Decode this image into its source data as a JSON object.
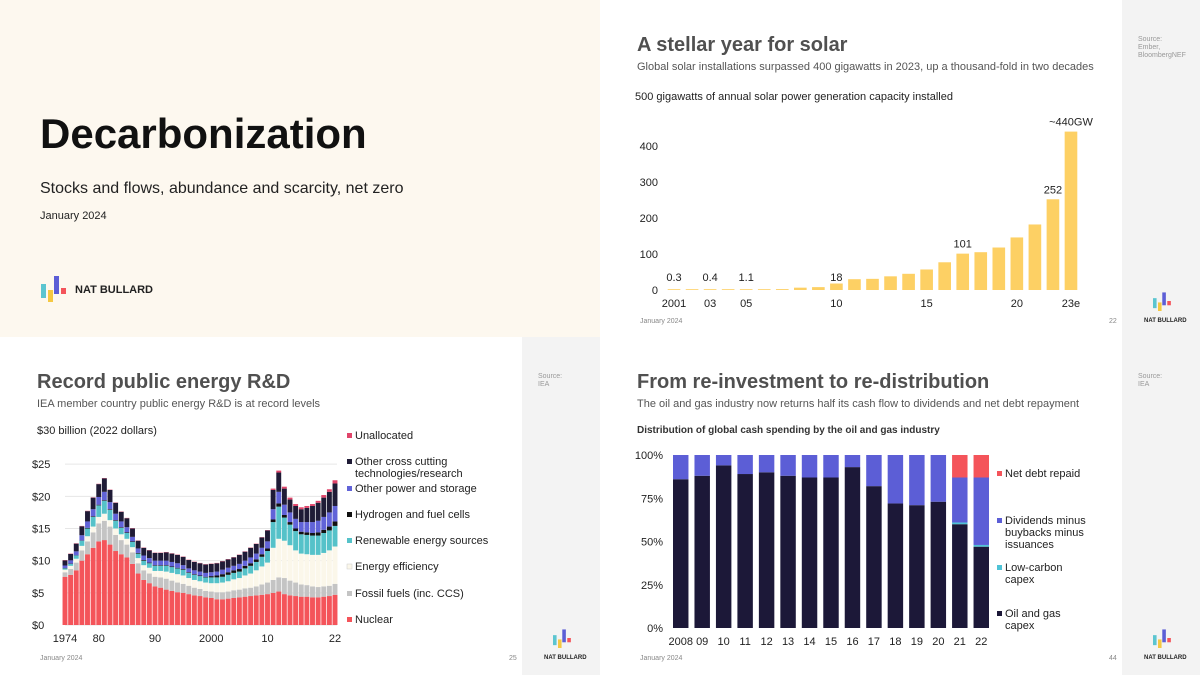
{
  "cover": {
    "title": "Decarbonization",
    "subtitle": "Stocks and flows, abundance and scarcity, net zero",
    "date": "January 2024",
    "brand": "NAT BULLARD"
  },
  "slide_solar": {
    "title": "A stellar year for solar",
    "subtitle": "Global solar installations surpassed 400 gigawatts in 2023, up a thousand-fold in two decades",
    "source": "Source:\nEmber,\nBloombergNEF",
    "date": "January 2024",
    "page": "22",
    "brand": "NAT BULLARD"
  },
  "slide_rd": {
    "title": "Record public energy R&D",
    "subtitle": "IEA member country public energy R&D is at record levels",
    "source": "Source:\nIEA",
    "date": "January 2024",
    "page": "25",
    "brand": "NAT BULLARD"
  },
  "slide_oil": {
    "title": "From re-investment to re-distribution",
    "subtitle": "The oil and gas industry now returns half its cash flow to dividends and net debt repayment",
    "source": "Source:\nIEA",
    "date": "January 2024",
    "page": "44",
    "brand": "NAT BULLARD"
  },
  "colors": {
    "solar": "#fdd064",
    "nuclear": "#f4545a",
    "fossil": "#c4c4c4",
    "efficiency": "#fbf7ea",
    "renewable": "#55c2c9",
    "hydrogen": "#111111",
    "other_power": "#6163d8",
    "cross_cutting": "#1f1b36",
    "unallocated": "#e0446a",
    "oil_gas": "#1c1838",
    "low_carbon": "#4fc3d6",
    "dividends": "#5c5ed6",
    "net_debt": "#f4545a"
  },
  "chart_data": [
    {
      "type": "bar",
      "title": "500 gigawatts of annual solar power generation capacity installed",
      "x": [
        "2001",
        "2002",
        "2003",
        "2004",
        "2005",
        "2006",
        "2007",
        "2008",
        "2009",
        "2010",
        "2011",
        "2012",
        "2013",
        "2014",
        "2015",
        "2016",
        "2017",
        "2018",
        "2019",
        "2020",
        "2021",
        "2022",
        "2023e"
      ],
      "values": [
        0.3,
        0.4,
        0.4,
        1.0,
        1.1,
        1.6,
        2.5,
        6.5,
        8,
        18,
        30,
        31,
        38,
        45,
        57,
        77,
        101,
        105,
        118,
        146,
        182,
        252,
        440
      ],
      "tick_labels": [
        "2001",
        "",
        "03",
        "",
        "05",
        "",
        "",
        "",
        "",
        "10",
        "",
        "",
        "",
        "",
        "15",
        "",
        "",
        "",
        "",
        "20",
        "",
        "",
        "23e"
      ],
      "data_labels": {
        "2001": "0.3",
        "2003": "0.4",
        "2005": "1.1",
        "2010": "18",
        "2017": "101",
        "2022": "252",
        "2023e": "~440GW"
      },
      "yticks": [
        0,
        100,
        200,
        300,
        400
      ],
      "ylim": [
        0,
        500
      ]
    },
    {
      "type": "area",
      "stacked": true,
      "ylabel": "$30 billion (2022 dollars)",
      "xlim": [
        1974,
        2022
      ],
      "xticks": [
        "1974",
        "80",
        "90",
        "2000",
        "10",
        "22"
      ],
      "yticks": [
        "$0",
        "$5",
        "$10",
        "$15",
        "$20",
        "$25"
      ],
      "ylim": [
        0,
        30
      ],
      "series": [
        {
          "name": "Nuclear",
          "values": [
            7.5,
            7.8,
            8.5,
            10,
            11,
            12,
            13,
            13.2,
            12.5,
            11.5,
            11,
            10.5,
            9.5,
            8,
            7,
            6.5,
            6,
            5.8,
            5.5,
            5.3,
            5.1,
            5,
            4.8,
            4.6,
            4.5,
            4.3,
            4.2,
            4,
            4,
            4.1,
            4.2,
            4.3,
            4.4,
            4.5,
            4.6,
            4.7,
            4.8,
            5,
            5.2,
            4.8,
            4.6,
            4.5,
            4.4,
            4.4,
            4.3,
            4.3,
            4.4,
            4.5,
            4.7
          ]
        },
        {
          "name": "Fossil fuels (inc. CCS)",
          "values": [
            0.7,
            0.9,
            1.2,
            1.6,
            2,
            2.4,
            2.8,
            3,
            2.8,
            2.5,
            2.2,
            2,
            1.8,
            1.6,
            1.5,
            1.5,
            1.5,
            1.6,
            1.7,
            1.6,
            1.5,
            1.4,
            1.3,
            1.2,
            1.1,
            1,
            1,
            1.1,
            1.1,
            1.1,
            1.2,
            1.2,
            1.3,
            1.3,
            1.4,
            1.6,
            1.8,
            2,
            2.2,
            2.5,
            2.3,
            2.1,
            1.9,
            1.8,
            1.7,
            1.6,
            1.6,
            1.6,
            1.7
          ]
        },
        {
          "name": "Energy efficiency",
          "values": [
            0.4,
            0.5,
            0.6,
            0.7,
            0.8,
            0.9,
            1,
            1.1,
            1,
            1,
            0.9,
            0.9,
            0.8,
            0.8,
            0.8,
            0.9,
            0.9,
            1,
            1.1,
            1.2,
            1.3,
            1.3,
            1.2,
            1.2,
            1.2,
            1.3,
            1.3,
            1.4,
            1.5,
            1.6,
            1.7,
            1.8,
            2,
            2.2,
            2.5,
            2.8,
            3.1,
            5,
            6,
            5.8,
            5.5,
            5,
            4.8,
            4.8,
            4.9,
            5,
            5.2,
            5.5,
            5.8
          ]
        },
        {
          "name": "Renewable energy sources",
          "values": [
            0.2,
            0.3,
            0.5,
            0.8,
            1.2,
            1.5,
            1.8,
            2,
            1.6,
            1.2,
            1,
            0.9,
            0.8,
            0.7,
            0.7,
            0.7,
            0.8,
            0.8,
            0.9,
            0.9,
            0.9,
            0.9,
            0.8,
            0.8,
            0.8,
            0.8,
            0.9,
            0.9,
            0.9,
            1,
            1,
            1,
            1.1,
            1.2,
            1.3,
            1.5,
            1.8,
            4,
            5,
            3.6,
            3.2,
            3,
            3,
            3,
            3,
            3,
            3.1,
            3.1,
            3.2
          ]
        },
        {
          "name": "Hydrogen and fuel cells",
          "values": [
            0.05,
            0.05,
            0.05,
            0.05,
            0.1,
            0.1,
            0.1,
            0.1,
            0.1,
            0.1,
            0.1,
            0.1,
            0.1,
            0.1,
            0.1,
            0.1,
            0.1,
            0.1,
            0.1,
            0.1,
            0.1,
            0.1,
            0.1,
            0.1,
            0.1,
            0.1,
            0.2,
            0.3,
            0.4,
            0.4,
            0.4,
            0.4,
            0.4,
            0.4,
            0.4,
            0.4,
            0.4,
            0.4,
            0.5,
            0.4,
            0.4,
            0.4,
            0.4,
            0.4,
            0.4,
            0.5,
            0.5,
            0.6,
            0.7
          ]
        },
        {
          "name": "Other power and storage",
          "values": [
            0.4,
            0.5,
            0.6,
            0.8,
            1,
            1.1,
            1.2,
            1.3,
            1.1,
            1,
            0.9,
            0.8,
            0.7,
            0.7,
            0.7,
            0.7,
            0.7,
            0.7,
            0.7,
            0.7,
            0.7,
            0.6,
            0.6,
            0.6,
            0.6,
            0.6,
            0.6,
            0.6,
            0.7,
            0.7,
            0.7,
            0.8,
            0.8,
            0.9,
            0.9,
            1,
            1.1,
            1.6,
            1.8,
            1.6,
            1.5,
            1.5,
            1.5,
            1.6,
            1.7,
            1.8,
            2,
            2.2,
            2.4
          ]
        },
        {
          "name": "Other cross cutting technologies/research",
          "values": [
            0.8,
            1,
            1.2,
            1.4,
            1.6,
            1.8,
            2,
            2.1,
            1.9,
            1.7,
            1.5,
            1.4,
            1.3,
            1.2,
            1.2,
            1.2,
            1.2,
            1.2,
            1.3,
            1.3,
            1.3,
            1.3,
            1.3,
            1.3,
            1.3,
            1.3,
            1.3,
            1.3,
            1.3,
            1.3,
            1.3,
            1.4,
            1.4,
            1.5,
            1.5,
            1.6,
            1.7,
            3,
            3,
            2.5,
            2,
            2,
            2,
            2.2,
            2.5,
            2.8,
            3,
            3.2,
            3.5
          ]
        },
        {
          "name": "Unallocated",
          "values": [
            0.05,
            0.05,
            0.05,
            0.05,
            0.05,
            0.05,
            0.05,
            0.05,
            0.05,
            0.05,
            0.05,
            0.05,
            0.05,
            0.05,
            0.05,
            0.05,
            0.05,
            0.05,
            0.05,
            0.05,
            0.05,
            0.05,
            0.05,
            0.05,
            0.05,
            0.05,
            0.05,
            0.05,
            0.05,
            0.05,
            0.05,
            0.05,
            0.05,
            0.05,
            0.05,
            0.05,
            0.05,
            0.2,
            0.3,
            0.3,
            0.3,
            0.3,
            0.3,
            0.3,
            0.3,
            0.3,
            0.4,
            0.4,
            0.5
          ]
        }
      ]
    },
    {
      "type": "bar",
      "stacked": true,
      "title": "Distribution of global cash spending by the oil and gas industry",
      "categories": [
        "2008",
        "09",
        "10",
        "11",
        "12",
        "13",
        "14",
        "15",
        "16",
        "17",
        "18",
        "19",
        "20",
        "21",
        "22"
      ],
      "yticks": [
        "0%",
        "25%",
        "50%",
        "75%",
        "100%"
      ],
      "ylim": [
        0,
        100
      ],
      "series": [
        {
          "name": "Oil and gas capex",
          "values": [
            86,
            88,
            94,
            89,
            90,
            88,
            87,
            87,
            93,
            82,
            72,
            71,
            73,
            60,
            47
          ]
        },
        {
          "name": "Low-carbon capex",
          "values": [
            0,
            0,
            0,
            0,
            0,
            0,
            0,
            0,
            0,
            0,
            0,
            0,
            0,
            1,
            1
          ]
        },
        {
          "name": "Dividends minus buybacks minus issuances",
          "values": [
            14,
            12,
            6,
            11,
            10,
            12,
            13,
            13,
            7,
            18,
            28,
            29,
            27,
            26,
            39
          ]
        },
        {
          "name": "Net debt repaid",
          "values": [
            0,
            0,
            0,
            0,
            0,
            0,
            0,
            0,
            0,
            0,
            0,
            0,
            0,
            13,
            13
          ]
        }
      ]
    }
  ]
}
